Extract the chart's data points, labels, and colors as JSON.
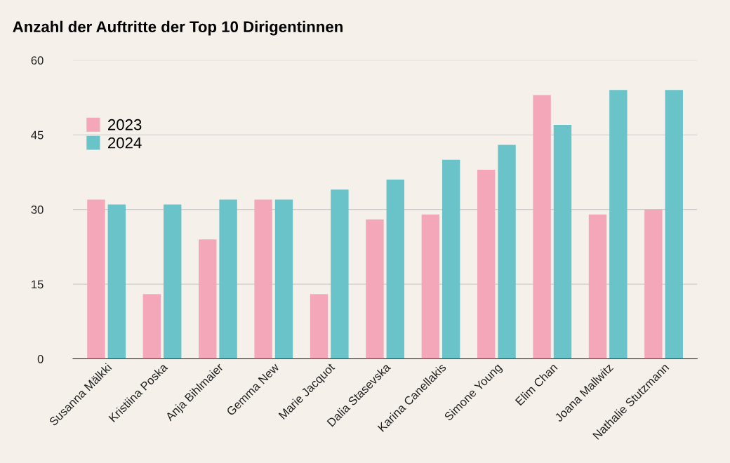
{
  "chart_data": {
    "type": "bar",
    "title": "Anzahl der Auftritte der Top 10 Dirigentinnen",
    "categories": [
      "Susanna Mälkki",
      "Kristiina Poska",
      "Anja Bihlmaier",
      "Gemma New",
      "Marie Jacquot",
      "Dalia Stasevska",
      "Karina Canellakis",
      "Simone Young",
      "Elim Chan",
      "Joana Mallwitz",
      "Nathalie Stutzmann"
    ],
    "series": [
      {
        "name": "2023",
        "color": "#f4a7b8",
        "values": [
          32,
          13,
          24,
          32,
          13,
          28,
          29,
          38,
          53,
          29,
          30
        ]
      },
      {
        "name": "2024",
        "color": "#6bc3ca",
        "values": [
          31,
          31,
          32,
          32,
          34,
          36,
          40,
          43,
          47,
          54,
          54
        ]
      }
    ],
    "ylim": [
      0,
      60
    ],
    "yticks": [
      0,
      15,
      30,
      45,
      60
    ],
    "grid": "y",
    "legend": "left"
  }
}
